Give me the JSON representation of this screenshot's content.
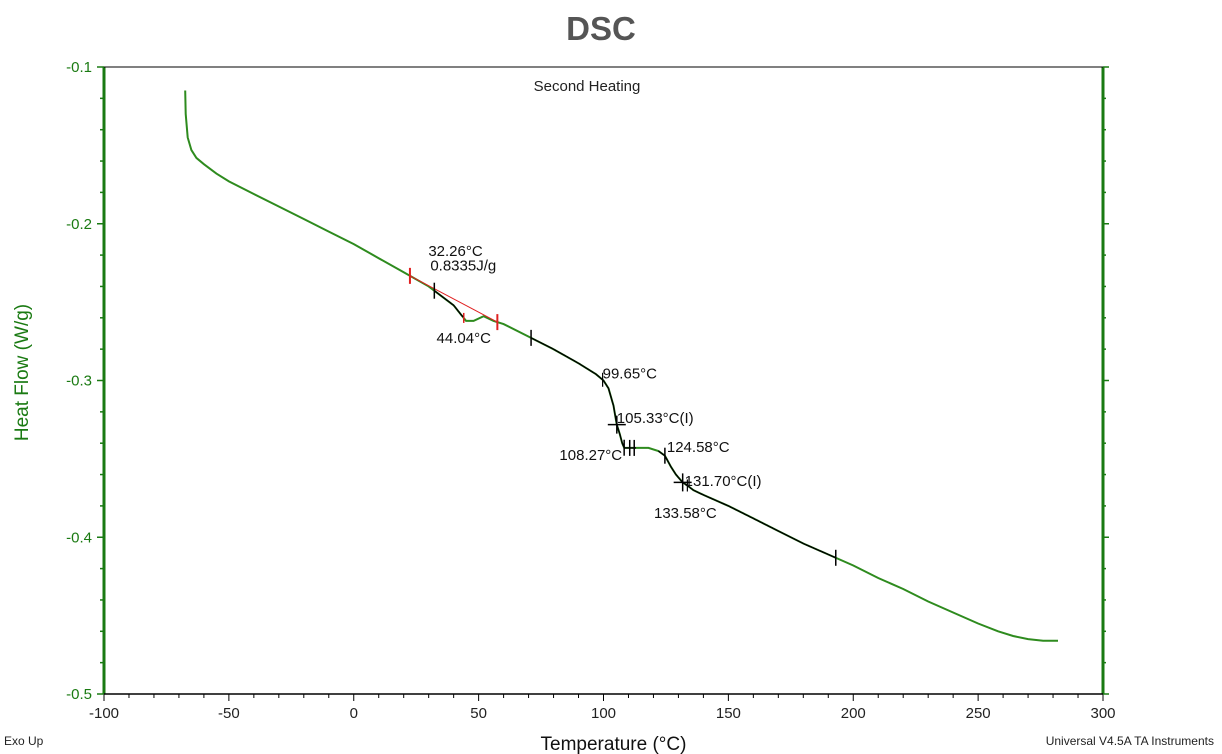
{
  "page_title": "DSC",
  "footer": {
    "left": "Exo Up",
    "right": "Universal V4.5A TA Instruments"
  },
  "colors": {
    "curve": "#2e8b1e",
    "axis": "#1a7a12",
    "analysis": "#000000",
    "baseline": "#e02020"
  },
  "chart_data": {
    "type": "line",
    "title": "Second Heating",
    "xlabel": "Temperature (°C)",
    "ylabel": "Heat Flow (W/g)",
    "xlim": [
      -100,
      300
    ],
    "ylim": [
      -0.5,
      -0.1
    ],
    "xticks": [
      -100,
      -50,
      0,
      50,
      100,
      150,
      200,
      250,
      300
    ],
    "xtick_labels": [
      "-100",
      "-50",
      "0",
      "50",
      "100",
      "150",
      "200",
      "250",
      "300"
    ],
    "yticks": [
      -0.5,
      -0.4,
      -0.3,
      -0.2,
      -0.1
    ],
    "ytick_labels": [
      "-0.5",
      "-0.4",
      "-0.3",
      "-0.2",
      "-0.1"
    ],
    "grid": false,
    "series": [
      {
        "x": [
          -67.5,
          -67.3,
          -66.5,
          -65,
          -63,
          -60,
          -55,
          -50,
          -40,
          -30,
          -20,
          -10,
          0,
          10,
          20,
          30,
          35,
          40,
          43,
          45,
          48,
          52,
          56,
          60,
          70,
          80,
          90,
          97,
          100,
          102,
          104,
          105.3,
          106.5,
          107.5,
          108.3,
          110,
          113,
          118,
          122,
          124.6,
          127,
          129,
          131.7,
          133.6,
          136,
          140,
          150,
          160,
          170,
          180,
          190,
          200,
          210,
          220,
          230,
          240,
          250,
          258,
          264,
          270,
          276,
          282
        ],
        "y": [
          -0.115,
          -0.13,
          -0.145,
          -0.153,
          -0.158,
          -0.162,
          -0.168,
          -0.173,
          -0.181,
          -0.189,
          -0.197,
          -0.205,
          -0.213,
          -0.222,
          -0.231,
          -0.24,
          -0.246,
          -0.252,
          -0.258,
          -0.262,
          -0.262,
          -0.259,
          -0.262,
          -0.264,
          -0.272,
          -0.28,
          -0.289,
          -0.296,
          -0.3,
          -0.305,
          -0.316,
          -0.328,
          -0.334,
          -0.34,
          -0.343,
          -0.343,
          -0.343,
          -0.343,
          -0.345,
          -0.348,
          -0.355,
          -0.36,
          -0.365,
          -0.367,
          -0.37,
          -0.373,
          -0.38,
          -0.388,
          -0.396,
          -0.404,
          -0.411,
          -0.418,
          -0.426,
          -0.433,
          -0.441,
          -0.448,
          -0.455,
          -0.46,
          -0.463,
          -0.465,
          -0.466,
          -0.466
        ]
      }
    ],
    "analysis": {
      "baseline_x": [
        22.5,
        57.5
      ],
      "peak_x": 44.04,
      "marker_x": [
        32.26,
        71,
        193
      ]
    },
    "annotations": [
      {
        "text": "32.26°C",
        "x": 32.26,
        "y": -0.2175
      },
      {
        "text": "0.8335J/g",
        "x": 32.26,
        "y": -0.2265
      },
      {
        "text": "44.04°C",
        "x": 44.04,
        "y": -0.273
      },
      {
        "text": "99.65°C",
        "x": 99.65,
        "y": -0.2955
      },
      {
        "text": "105.33°C(I)",
        "x": 105.33,
        "y": -0.324
      },
      {
        "text": "108.27°C",
        "x": 108.27,
        "y": -0.3475
      },
      {
        "text": "124.58°C",
        "x": 124.58,
        "y": -0.3425
      },
      {
        "text": "131.70°C(I)",
        "x": 131.7,
        "y": -0.364
      },
      {
        "text": "133.58°C",
        "x": 133.58,
        "y": -0.3845
      }
    ]
  }
}
